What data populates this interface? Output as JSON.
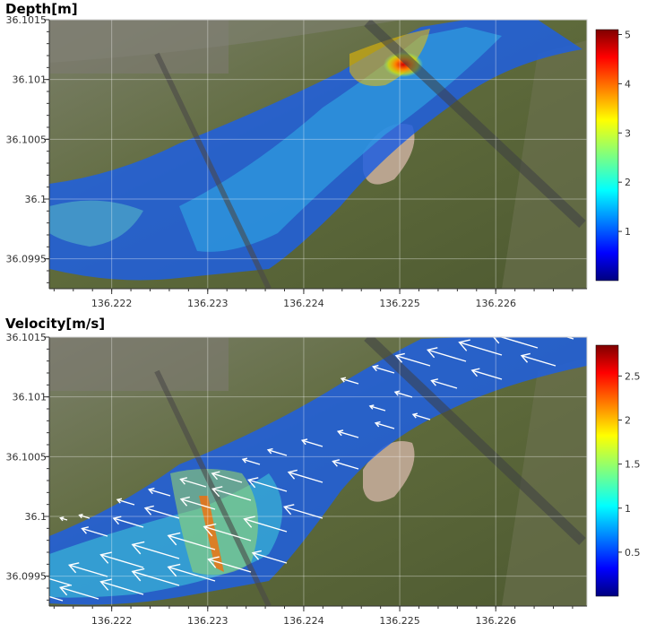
{
  "chart_data": [
    {
      "type": "heatmap",
      "title": "Depth[m]",
      "xlabel": "",
      "ylabel": "",
      "xlim": [
        136.22135,
        136.22695
      ],
      "ylim": [
        36.09925,
        36.1015
      ],
      "x_ticks": [
        136.222,
        136.223,
        136.224,
        136.225,
        136.226
      ],
      "x_tick_labels": [
        "136.222",
        "136.223",
        "136.224",
        "136.225",
        "136.226"
      ],
      "y_ticks": [
        36.0995,
        36.1,
        36.1005,
        36.101,
        36.1015
      ],
      "y_tick_labels": [
        "36.0995",
        "36.1",
        "36.1005",
        "36.101",
        "36.1015"
      ],
      "colorbar": {
        "range": [
          0,
          5.1
        ],
        "ticks": [
          1,
          2,
          3,
          4,
          5
        ],
        "tick_labels": [
          "1",
          "2",
          "3",
          "4",
          "5"
        ],
        "colormap": "jet"
      },
      "background": "aerial-photo",
      "grid": true,
      "peak": {
        "x": 136.22518,
        "y": 36.10112,
        "value": 4.8
      }
    },
    {
      "type": "heatmap",
      "title": "Velocity[m/s]",
      "xlabel": "",
      "ylabel": "",
      "xlim": [
        136.22135,
        136.22695
      ],
      "ylim": [
        36.09925,
        36.1015
      ],
      "x_ticks": [
        136.222,
        136.223,
        136.224,
        136.225,
        136.226
      ],
      "x_tick_labels": [
        "136.222",
        "136.223",
        "136.224",
        "136.225",
        "136.226"
      ],
      "y_ticks": [
        36.0995,
        36.1,
        36.1005,
        36.101,
        36.1015
      ],
      "y_tick_labels": [
        "36.0995",
        "36.1",
        "36.1005",
        "36.101",
        "36.1015"
      ],
      "colorbar": {
        "range": [
          0,
          2.85
        ],
        "ticks": [
          0.5,
          1,
          1.5,
          2,
          2.5
        ],
        "tick_labels": [
          "0.5",
          "1",
          "1.5",
          "2",
          "2.5"
        ],
        "colormap": "jet"
      },
      "background": "aerial-photo",
      "grid": true,
      "vector_overlay": "white arrows, flow toward west-southwest",
      "peak": {
        "x": 136.22302,
        "y": 36.09985,
        "value": 2.8
      }
    }
  ],
  "colors": {
    "jet_low": "#00007f",
    "jet_mid": "#7fff7f",
    "jet_high": "#7f0000",
    "arrow": "#ffffff",
    "land": "#5d6b3a"
  }
}
